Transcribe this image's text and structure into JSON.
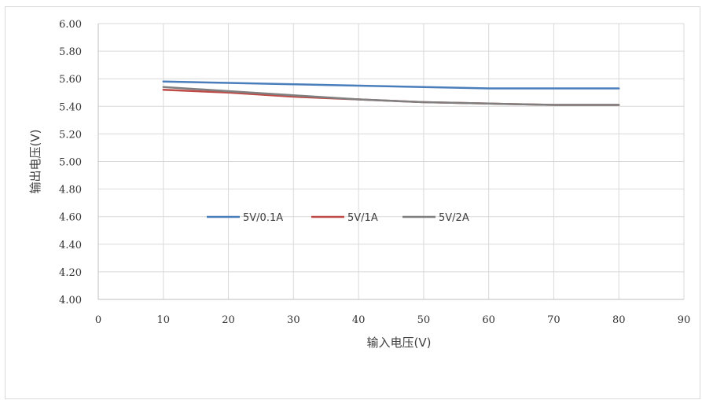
{
  "chart_data": {
    "type": "line",
    "title": "",
    "xlabel": "输入电压(V)",
    "ylabel": "输出电压(V)",
    "xlim": [
      0,
      90
    ],
    "ylim": [
      4.0,
      6.0
    ],
    "x_ticks": [
      0,
      10,
      20,
      30,
      40,
      50,
      60,
      70,
      80,
      90
    ],
    "y_ticks": [
      4.0,
      4.2,
      4.4,
      4.6,
      4.8,
      5.0,
      5.2,
      5.4,
      5.6,
      5.8,
      6.0
    ],
    "y_tick_labels": [
      "4.00",
      "4.20",
      "4.40",
      "4.60",
      "4.80",
      "5.00",
      "5.20",
      "5.40",
      "5.60",
      "5.80",
      "6.00"
    ],
    "grid": "vertical",
    "legend_position": "center-left",
    "x": [
      10,
      20,
      30,
      40,
      50,
      60,
      70,
      80
    ],
    "series": [
      {
        "name": "5V/0.1A",
        "color": "#4a7ebb",
        "values": [
          5.58,
          5.57,
          5.56,
          5.55,
          5.54,
          5.53,
          5.53,
          5.53
        ]
      },
      {
        "name": "5V/1A",
        "color": "#be4b48",
        "values": [
          5.52,
          5.5,
          5.47,
          5.45,
          5.43,
          5.42,
          5.41,
          5.41
        ]
      },
      {
        "name": "5V/2A",
        "color": "#7f7f7f",
        "values": [
          5.54,
          5.51,
          5.48,
          5.45,
          5.43,
          5.42,
          5.41,
          5.41
        ]
      }
    ]
  }
}
